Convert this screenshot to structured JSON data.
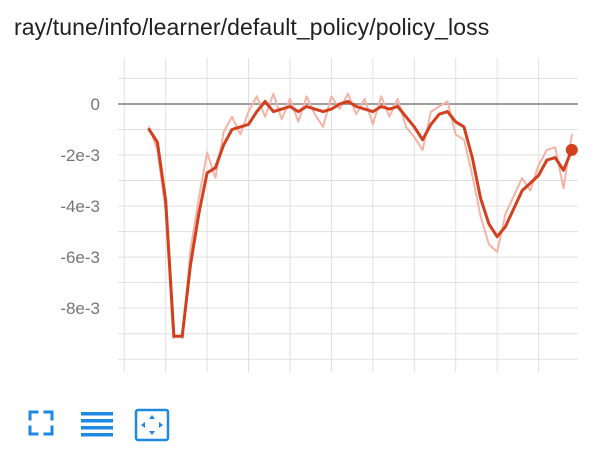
{
  "card": {
    "title": "ray/tune/info/learner/default_policy/policy_loss"
  },
  "toolbar": {
    "buttons": [
      {
        "name": "fullscreen-button",
        "icon": "fullscreen-icon"
      },
      {
        "name": "toggle-log-button",
        "icon": "menu-lines-icon"
      },
      {
        "name": "fit-domain-button",
        "icon": "fit-to-data-icon"
      }
    ],
    "icon_color": "#1e88e5"
  },
  "chart_data": {
    "type": "line",
    "title": "ray/tune/info/learner/default_policy/policy_loss",
    "xlabel": "",
    "ylabel": "",
    "ylim": [
      -0.0105,
      0.0018
    ],
    "yticks": [
      0,
      -0.002,
      -0.004,
      -0.006,
      -0.008
    ],
    "ytick_labels": [
      "0",
      "-2e-3",
      "-4e-3",
      "-6e-3",
      "-8e-3"
    ],
    "xlim": [
      -1.5,
      109.5
    ],
    "grid": true,
    "colors": {
      "smoothed": "#d2401f",
      "raw": "#f5b3a6",
      "zero_line": "#9e9e9e",
      "grid": "#e0e0e0"
    },
    "series": [
      {
        "role": "smoothed",
        "x": [
          6,
          8,
          10,
          12,
          14,
          16,
          18,
          20,
          22,
          24,
          26,
          28,
          30,
          32,
          34,
          36,
          38,
          40,
          42,
          44,
          46,
          48,
          50,
          52,
          54,
          56,
          58,
          60,
          62,
          64,
          66,
          68,
          70,
          72,
          74,
          76,
          78,
          80,
          82,
          84,
          86,
          88,
          90,
          92,
          94,
          96,
          98,
          100,
          102,
          104,
          106,
          108
        ],
        "y": [
          -0.001,
          -0.0015,
          -0.0038,
          -0.0091,
          -0.0091,
          -0.0063,
          -0.0043,
          -0.0027,
          -0.0025,
          -0.0016,
          -0.001,
          -0.0009,
          -0.0008,
          -0.0003,
          0.0001,
          -0.0003,
          -0.0002,
          -0.0001,
          -0.0003,
          -0.0001,
          -0.0002,
          -0.0003,
          -0.0002,
          0,
          0.0001,
          -0.0001,
          -0.0002,
          -0.0003,
          -0.0001,
          -0.0002,
          -0.0001,
          -0.0005,
          -0.0009,
          -0.0014,
          -0.0008,
          -0.0004,
          -0.0003,
          -0.0007,
          -0.0009,
          -0.0021,
          -0.0037,
          -0.0047,
          -0.0052,
          -0.0048,
          -0.0041,
          -0.0034,
          -0.0031,
          -0.0028,
          -0.0022,
          -0.0021,
          -0.0026,
          -0.0018
        ]
      },
      {
        "role": "raw",
        "x": [
          6,
          8,
          10,
          12,
          14,
          16,
          18,
          20,
          22,
          24,
          26,
          28,
          30,
          32,
          34,
          36,
          38,
          40,
          42,
          44,
          46,
          48,
          50,
          52,
          54,
          56,
          58,
          60,
          62,
          64,
          66,
          68,
          70,
          72,
          74,
          76,
          78,
          80,
          82,
          84,
          86,
          88,
          90,
          92,
          94,
          96,
          98,
          100,
          102,
          104,
          106,
          108
        ],
        "y": [
          -0.0009,
          -0.0018,
          -0.0042,
          -0.0096,
          -0.0094,
          -0.0057,
          -0.0037,
          -0.0019,
          -0.0029,
          -0.0011,
          -0.0005,
          -0.0012,
          -0.0003,
          0.0003,
          -0.0005,
          0.0004,
          -0.0006,
          0.0002,
          -0.0007,
          0.0003,
          -0.0004,
          -0.0009,
          0.0003,
          -0.0002,
          0.0004,
          -0.0004,
          0.0002,
          -0.0008,
          0.0003,
          -0.0005,
          0.0002,
          -0.0009,
          -0.0013,
          -0.0018,
          -0.0003,
          -0.0001,
          0.0001,
          -0.0012,
          -0.0014,
          -0.0028,
          -0.0044,
          -0.0055,
          -0.0058,
          -0.0043,
          -0.0036,
          -0.0029,
          -0.0034,
          -0.0024,
          -0.0018,
          -0.0017,
          -0.0033,
          -0.0012
        ]
      }
    ]
  }
}
